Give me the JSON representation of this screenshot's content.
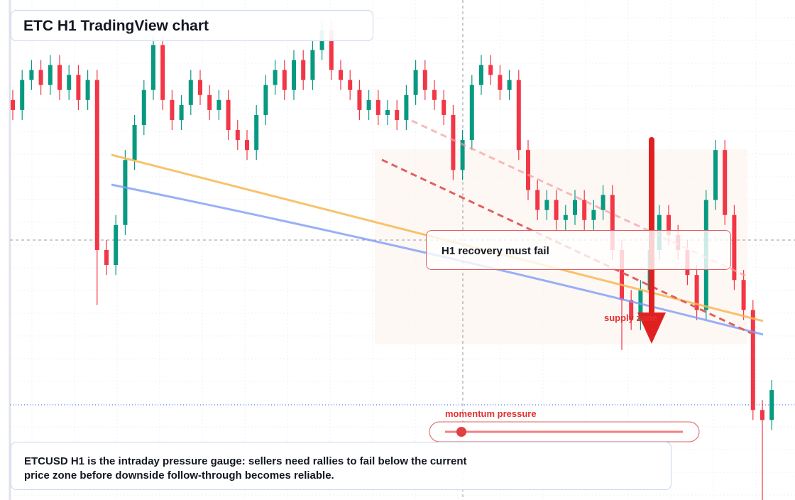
{
  "chart_data": {
    "type": "candlestick",
    "title": "ETC H1 TradingView chart",
    "annotation": "H1 recovery must fail",
    "zone_label": "supply zone",
    "gauge_label": "momentum pressure",
    "caption": "ETCUSD H1 is the intraday pressure gauge: sellers need rallies to fail below the current price zone before downside follow-through becomes reliable.",
    "up_color": "#089981",
    "down_color": "#f23645",
    "ylim": [
      0,
      100
    ],
    "open": [
      80,
      78,
      84,
      86,
      83,
      87,
      82,
      85,
      80,
      84,
      50,
      47,
      55,
      68,
      75,
      82,
      91,
      80,
      76,
      79,
      84,
      81,
      78,
      80,
      74,
      72,
      70,
      77,
      83,
      86,
      82,
      88,
      84,
      90,
      94,
      86,
      84,
      82,
      78,
      80,
      77,
      78,
      76,
      81,
      86,
      82,
      80,
      77,
      66,
      72,
      83,
      87,
      85,
      82,
      84,
      70,
      62,
      58,
      60,
      56,
      57,
      60,
      56,
      58,
      61,
      50,
      40,
      36,
      42,
      50,
      57,
      53,
      50,
      45,
      38,
      60,
      70,
      57,
      44,
      38,
      18,
      16
    ],
    "high": [
      82,
      86,
      88,
      88,
      89,
      89,
      87,
      87,
      86,
      86,
      52,
      57,
      70,
      77,
      84,
      93,
      93,
      82,
      81,
      86,
      86,
      83,
      82,
      82,
      76,
      74,
      79,
      85,
      88,
      88,
      90,
      90,
      92,
      96,
      96,
      88,
      86,
      84,
      82,
      82,
      80,
      80,
      83,
      88,
      88,
      84,
      82,
      79,
      74,
      85,
      89,
      89,
      87,
      86,
      86,
      72,
      64,
      62,
      62,
      59,
      62,
      62,
      60,
      63,
      63,
      52,
      42,
      44,
      52,
      59,
      59,
      55,
      52,
      47,
      62,
      72,
      72,
      59,
      46,
      40,
      20,
      24
    ],
    "low": [
      76,
      76,
      82,
      81,
      81,
      80,
      80,
      78,
      78,
      39,
      45,
      45,
      53,
      66,
      73,
      80,
      78,
      74,
      74,
      77,
      79,
      76,
      76,
      72,
      70,
      68,
      68,
      75,
      81,
      80,
      80,
      82,
      82,
      88,
      84,
      82,
      80,
      76,
      76,
      75,
      75,
      74,
      74,
      79,
      80,
      78,
      75,
      64,
      64,
      70,
      81,
      83,
      80,
      80,
      68,
      60,
      56,
      56,
      54,
      54,
      55,
      54,
      54,
      56,
      48,
      30,
      34,
      34,
      40,
      48,
      51,
      48,
      43,
      36,
      36,
      58,
      55,
      42,
      36,
      16,
      0,
      14
    ],
    "close": [
      78,
      84,
      86,
      83,
      87,
      82,
      85,
      80,
      84,
      50,
      47,
      55,
      68,
      75,
      82,
      91,
      80,
      76,
      79,
      84,
      81,
      78,
      80,
      74,
      72,
      70,
      77,
      83,
      86,
      82,
      88,
      84,
      90,
      94,
      86,
      84,
      82,
      78,
      80,
      77,
      78,
      76,
      81,
      86,
      82,
      80,
      77,
      66,
      72,
      83,
      87,
      85,
      82,
      84,
      70,
      62,
      58,
      60,
      56,
      57,
      60,
      56,
      58,
      61,
      50,
      40,
      36,
      42,
      50,
      57,
      53,
      50,
      45,
      38,
      60,
      70,
      57,
      44,
      38,
      18,
      16,
      22
    ]
  }
}
